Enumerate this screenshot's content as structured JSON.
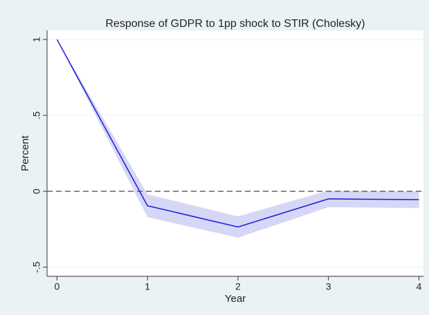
{
  "chart_data": {
    "type": "line",
    "title": "Response of GDPR to 1pp shock to STIR (Cholesky)",
    "x_label": "Year",
    "y_label": "Percent",
    "x": [
      0,
      1,
      2,
      3,
      4
    ],
    "values": [
      1,
      -0.095,
      -0.235,
      -0.05,
      -0.055
    ],
    "lower": [
      1,
      -0.17,
      -0.305,
      -0.105,
      -0.11
    ],
    "upper": [
      1,
      -0.02,
      -0.165,
      0.005,
      0.0
    ],
    "color": "#1a1ad6",
    "band_color": "#d6d6f7",
    "xlim": [
      -0.11,
      4.05
    ],
    "ylim": [
      -0.56,
      1.06
    ],
    "xticks": [
      0,
      1,
      2,
      3,
      4
    ],
    "yticks": [
      {
        "value": -0.5,
        "label": "-.5"
      },
      0,
      {
        "value": 0.5,
        "label": ".5"
      },
      1
    ],
    "reference_line": 0,
    "grid": true
  }
}
